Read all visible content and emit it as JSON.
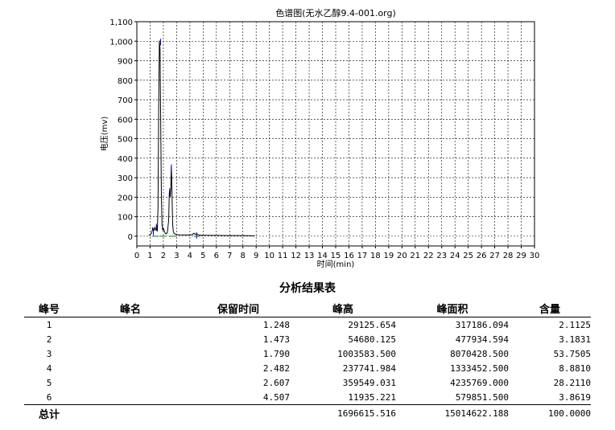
{
  "chart_data": {
    "type": "line",
    "title": "色谱图(无水乙醇9.4-001.org)",
    "ylabel": "电压(mv)",
    "xlabel": "时间(min)",
    "xlim": [
      0,
      30
    ],
    "ylim": [
      -50,
      1100
    ],
    "x_ticks": [
      0,
      1,
      2,
      3,
      4,
      5,
      6,
      7,
      8,
      9,
      10,
      11,
      12,
      13,
      14,
      15,
      16,
      17,
      18,
      19,
      20,
      21,
      22,
      23,
      24,
      25,
      26,
      27,
      28,
      29,
      30
    ],
    "y_ticks": [
      0,
      100,
      200,
      300,
      400,
      500,
      600,
      700,
      800,
      900,
      1000,
      1100
    ],
    "y_tick_labels": [
      "0",
      "100",
      "200",
      "300",
      "400",
      "500",
      "600",
      "700",
      "800",
      "900",
      "1,000",
      "1,100"
    ],
    "grid": true,
    "series": [
      {
        "color": "#000000",
        "x": [
          0.9,
          1.0,
          1.1,
          1.15,
          1.2,
          1.25,
          1.3,
          1.35,
          1.4,
          1.45,
          1.5,
          1.55,
          1.6,
          1.65,
          1.7,
          1.75,
          1.8,
          1.85,
          1.9,
          1.95,
          2.0,
          2.05,
          2.1,
          2.2,
          2.3,
          2.4,
          2.45,
          2.48,
          2.52,
          2.56,
          2.6,
          2.63,
          2.67,
          2.7,
          2.75,
          2.8,
          2.9,
          3.0,
          3.2,
          3.5,
          3.8,
          4.0,
          4.2,
          4.3,
          4.4,
          4.5,
          4.55,
          4.6,
          4.7,
          4.9,
          5.2,
          6.0,
          7.0,
          8.0,
          8.9
        ],
        "y": [
          5,
          8,
          15,
          25,
          45,
          28,
          30,
          45,
          35,
          30,
          55,
          25,
          150,
          700,
          1003,
          960,
          600,
          200,
          60,
          30,
          40,
          30,
          20,
          12,
          18,
          80,
          220,
          237,
          200,
          250,
          359,
          300,
          150,
          60,
          25,
          15,
          10,
          8,
          7,
          7,
          6,
          6,
          8,
          15,
          10,
          12,
          11,
          8,
          6,
          5,
          5,
          4,
          3,
          3,
          2
        ]
      }
    ],
    "peak_markers": [
      {
        "x": 1.248,
        "y": 29
      },
      {
        "x": 1.473,
        "y": 55
      },
      {
        "x": 1.79,
        "y": 1004
      },
      {
        "x": 2.482,
        "y": 238
      },
      {
        "x": 2.607,
        "y": 360
      },
      {
        "x": 4.507,
        "y": 12
      }
    ],
    "baseline_segments": [
      {
        "x1": 1.15,
        "y1": 0,
        "x2": 1.65,
        "y2": 0
      },
      {
        "x1": 1.7,
        "y1": 0,
        "x2": 2.2,
        "y2": 0
      },
      {
        "x1": 2.4,
        "y1": 0,
        "x2": 3.0,
        "y2": 0
      },
      {
        "x1": 4.3,
        "y1": 0,
        "x2": 4.8,
        "y2": 0
      }
    ]
  },
  "report": {
    "title": "分析结果表",
    "headers": {
      "no": "峰号",
      "name": "峰名",
      "rt": "保留时间",
      "height": "峰高",
      "area": "峰面积",
      "content": "含量"
    },
    "rows": [
      {
        "no": "1",
        "name": "",
        "rt": "1.248",
        "height": "29125.654",
        "area": "317186.094",
        "content": "2.1125"
      },
      {
        "no": "2",
        "name": "",
        "rt": "1.473",
        "height": "54680.125",
        "area": "477934.594",
        "content": "3.1831"
      },
      {
        "no": "3",
        "name": "",
        "rt": "1.790",
        "height": "1003583.500",
        "area": "8070428.500",
        "content": "53.7505"
      },
      {
        "no": "4",
        "name": "",
        "rt": "2.482",
        "height": "237741.984",
        "area": "1333452.500",
        "content": "8.8810"
      },
      {
        "no": "5",
        "name": "",
        "rt": "2.607",
        "height": "359549.031",
        "area": "4235769.000",
        "content": "28.2110"
      },
      {
        "no": "6",
        "name": "",
        "rt": "4.507",
        "height": "11935.221",
        "area": "579851.500",
        "content": "3.8619"
      }
    ],
    "total": {
      "label": "总计",
      "height": "1696615.516",
      "area": "15014622.188",
      "content": "100.0000"
    }
  }
}
